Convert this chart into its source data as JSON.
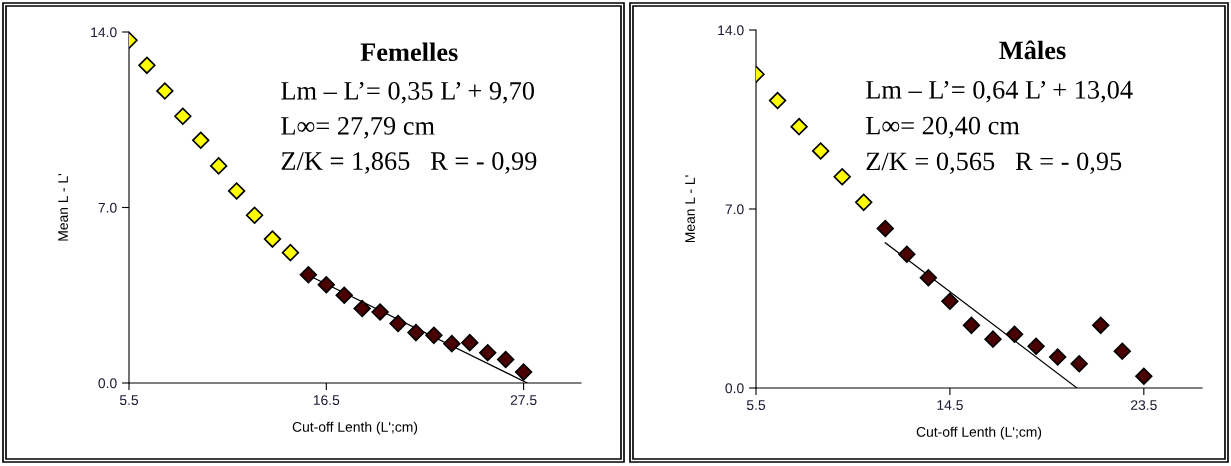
{
  "chart_data": [
    {
      "type": "scatter",
      "title": "Femelles",
      "xlabel": "Cut-off Lenth (L';cm)",
      "ylabel": "Mean L - L'",
      "annotations": [
        "Lm – L’= 0,35 L’ + 9,70",
        "L∞= 27,79 cm",
        "Z/K = 1,865   R = - 0,99"
      ],
      "xlim": [
        5.5,
        30.7
      ],
      "xticks": [
        5.5,
        16.5,
        27.5
      ],
      "ylim": [
        0,
        14
      ],
      "yticks": [
        {
          "value": 0,
          "label": "0.0"
        },
        {
          "value": 7,
          "label": "7.0"
        },
        {
          "value": 14,
          "label": "14.0"
        }
      ],
      "grid": false,
      "legend": false,
      "series": [
        {
          "marker": "diamond",
          "color": "#ffff00",
          "x": [
            5.5,
            6.5,
            7.5,
            8.5,
            9.5,
            10.5,
            11.5,
            12.5,
            13.5,
            14.5
          ],
          "values": [
            13.67,
            12.67,
            11.65,
            10.64,
            9.68,
            8.66,
            7.66,
            6.69,
            5.74,
            5.2
          ]
        },
        {
          "marker": "diamond",
          "color": "#4a0000",
          "x": [
            15.5,
            16.5,
            17.5,
            18.5,
            19.5,
            20.5,
            21.5,
            22.5,
            23.5,
            24.5,
            25.5,
            26.5,
            27.5
          ],
          "values": [
            4.32,
            3.92,
            3.5,
            2.97,
            2.83,
            2.37,
            2.01,
            1.9,
            1.57,
            1.61,
            1.21,
            0.94,
            0.44
          ]
        },
        {
          "type": "line",
          "color": "#000000",
          "x": [
            15.5,
            27.7
          ],
          "values": [
            4.3,
            0.0
          ]
        }
      ]
    },
    {
      "type": "scatter",
      "title": "Mâles",
      "xlabel": "Cut-off Lenth (L';cm)",
      "ylabel": "Mean L - L'",
      "annotations": [
        "Lm – L’= 0,64 L’ + 13,04",
        "L∞= 20,40 cm",
        "Z/K = 0,565   R = - 0,95"
      ],
      "xlim": [
        5.5,
        26.2
      ],
      "xticks": [
        5.5,
        14.5,
        23.5
      ],
      "ylim": [
        0,
        14
      ],
      "yticks": [
        {
          "value": 0,
          "label": "0.0"
        },
        {
          "value": 7,
          "label": "7.0"
        },
        {
          "value": 14,
          "label": "14.0"
        }
      ],
      "grid": false,
      "legend": false,
      "series": [
        {
          "marker": "diamond",
          "color": "#ffff00",
          "x": [
            5.5,
            6.5,
            7.5,
            8.5,
            9.5,
            10.5
          ],
          "values": [
            12.27,
            11.24,
            10.22,
            9.27,
            8.26,
            7.26
          ]
        },
        {
          "marker": "diamond",
          "color": "#4a0000",
          "x": [
            11.5,
            12.5,
            13.5,
            14.5,
            15.5,
            16.5,
            17.5,
            18.5,
            19.5,
            20.5,
            21.5,
            22.5,
            23.5
          ],
          "values": [
            6.24,
            5.23,
            4.31,
            3.39,
            2.45,
            1.91,
            2.1,
            1.63,
            1.21,
            0.95,
            2.45,
            1.44,
            0.46
          ]
        },
        {
          "type": "line",
          "color": "#000000",
          "x": [
            11.5,
            20.4
          ],
          "values": [
            5.68,
            0.0
          ]
        }
      ]
    }
  ]
}
